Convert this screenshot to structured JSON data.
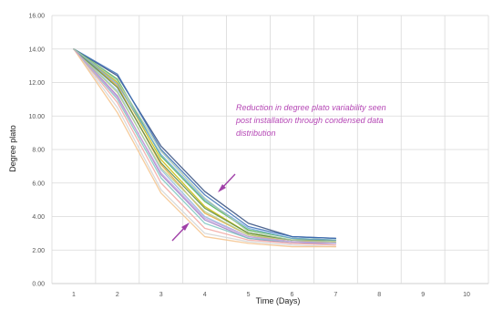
{
  "chart_data": {
    "type": "line",
    "title": "",
    "xlabel": "Time (Days)",
    "ylabel": "Degree plato",
    "x": [
      1,
      2,
      3,
      4,
      5,
      6,
      7
    ],
    "xticks": [
      "1",
      "2",
      "3",
      "4",
      "5",
      "6",
      "7",
      "8",
      "9",
      "10"
    ],
    "yticks": [
      "0.00",
      "2.00",
      "4.00",
      "6.00",
      "8.00",
      "10.00",
      "12.00",
      "14.00",
      "16.00"
    ],
    "xlim": [
      0.5,
      10.5
    ],
    "ylim": [
      0,
      16
    ],
    "grid": true,
    "legend": "none",
    "annotation": {
      "lines": [
        "Reduction in degree plato variability seen",
        "post installation through condensed data",
        "distribution"
      ],
      "color": "#b547b5"
    },
    "arrow_color": "#a040a8",
    "series": [
      {
        "color": "#2e4a7d",
        "values": [
          14.0,
          12.4,
          8.2,
          5.5,
          3.6,
          2.8,
          2.7
        ]
      },
      {
        "color": "#3a6db5",
        "values": [
          14.0,
          12.5,
          8.0,
          5.3,
          3.4,
          2.8,
          2.7
        ]
      },
      {
        "color": "#4caf50",
        "values": [
          14.0,
          12.2,
          7.6,
          4.9,
          3.2,
          2.7,
          2.6
        ]
      },
      {
        "color": "#c8b800",
        "values": [
          14.0,
          12.0,
          7.4,
          4.6,
          3.0,
          2.6,
          2.5
        ]
      },
      {
        "color": "#e8a33a",
        "values": [
          14.0,
          11.8,
          7.1,
          4.2,
          2.9,
          2.5,
          2.5
        ]
      },
      {
        "color": "#8fb8de",
        "values": [
          14.0,
          11.5,
          6.8,
          4.0,
          2.8,
          2.5,
          2.4
        ]
      },
      {
        "color": "#9b7fc4",
        "values": [
          14.0,
          11.2,
          6.5,
          3.8,
          2.7,
          2.4,
          2.4
        ]
      },
      {
        "color": "#f2a6a0",
        "values": [
          14.0,
          10.8,
          6.0,
          3.3,
          2.6,
          2.4,
          2.3
        ]
      },
      {
        "color": "#7ec6c0",
        "values": [
          14.0,
          11.0,
          6.3,
          3.6,
          2.7,
          2.5,
          2.4
        ]
      },
      {
        "color": "#b0d08a",
        "values": [
          14.0,
          11.4,
          6.9,
          4.3,
          2.9,
          2.6,
          2.5
        ]
      },
      {
        "color": "#d4d4d4",
        "values": [
          14.0,
          10.5,
          5.6,
          3.0,
          2.5,
          2.3,
          2.2
        ]
      },
      {
        "color": "#f4c28a",
        "values": [
          14.0,
          10.2,
          5.4,
          2.8,
          2.4,
          2.2,
          2.2
        ]
      },
      {
        "color": "#5b8a3c",
        "values": [
          14.0,
          11.7,
          7.2,
          4.5,
          3.0,
          2.6,
          2.6
        ]
      },
      {
        "color": "#6fa8dc",
        "values": [
          14.0,
          11.9,
          7.7,
          5.0,
          3.3,
          2.7,
          2.6
        ]
      },
      {
        "color": "#c9a0dc",
        "values": [
          14.0,
          11.1,
          6.6,
          3.9,
          2.8,
          2.5,
          2.4
        ]
      },
      {
        "color": "#a3c4a8",
        "values": [
          14.0,
          12.1,
          7.9,
          5.1,
          3.1,
          2.6,
          2.5
        ]
      }
    ]
  }
}
